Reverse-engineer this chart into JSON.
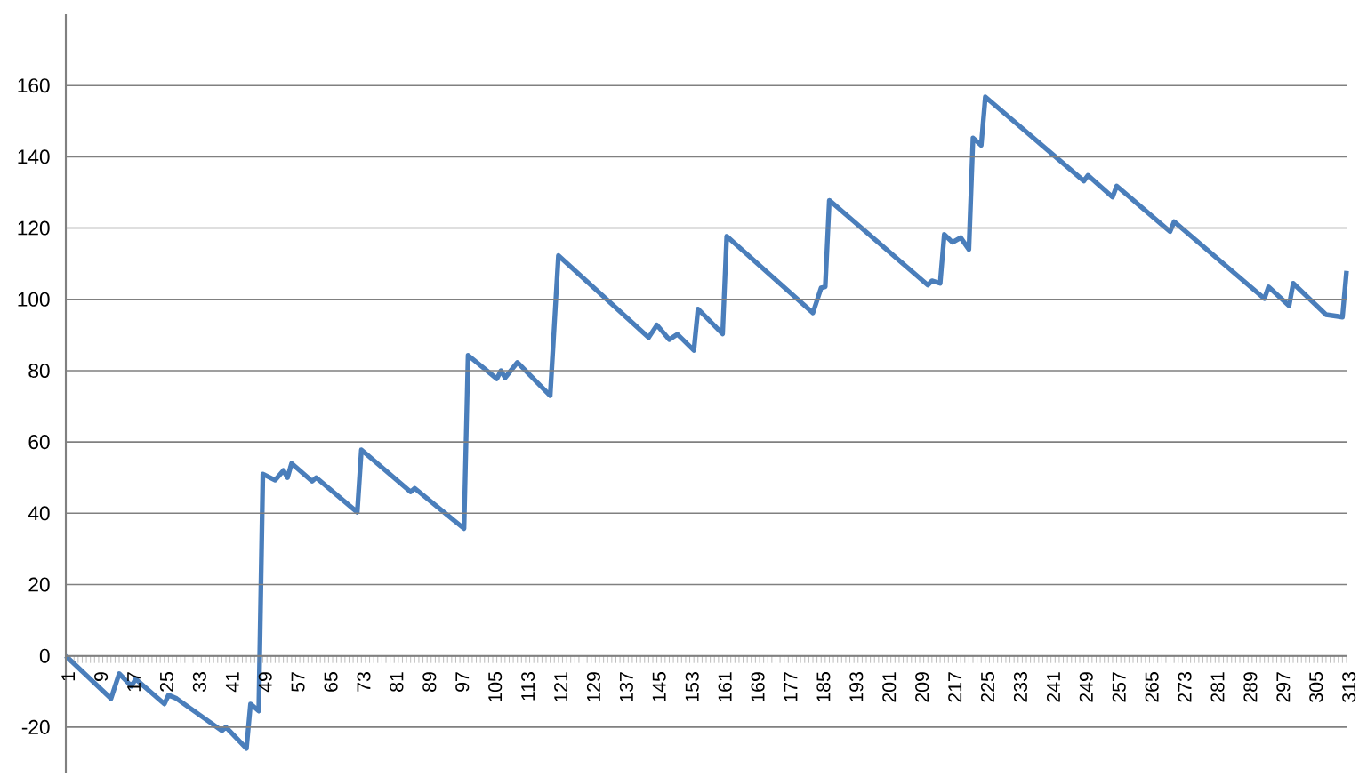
{
  "chart_data": {
    "type": "line",
    "color": "#4a7ebb",
    "grid": "y",
    "marker": "none",
    "line_style": "solid",
    "x": [
      1,
      12,
      14,
      17,
      18,
      25,
      26,
      28,
      39,
      40,
      45,
      46,
      48,
      49,
      52,
      54,
      55,
      56,
      61,
      62,
      72,
      73,
      85,
      86,
      98,
      99,
      106,
      107,
      108,
      111,
      119,
      121,
      143,
      145,
      148,
      150,
      154,
      155,
      161,
      162,
      183,
      185,
      186,
      187,
      211,
      212,
      214,
      215,
      217,
      219,
      221,
      222,
      224,
      225,
      249,
      250,
      256,
      257,
      270,
      271,
      293,
      294,
      299,
      300,
      308,
      311,
      312,
      313
    ],
    "values": [
      0,
      -12,
      -5,
      -8.5,
      -6.5,
      -13.5,
      -11,
      -12,
      -21,
      -20,
      -26,
      -13.5,
      -15.5,
      51,
      49.3,
      52,
      50,
      54,
      49,
      50,
      40.3,
      57.8,
      46,
      47,
      35.7,
      84.3,
      77.7,
      80,
      78,
      82.3,
      73,
      112.3,
      89.3,
      92.8,
      88.7,
      90.2,
      85.7,
      97.3,
      90.3,
      117.7,
      96.2,
      103.2,
      103.5,
      127.8,
      104,
      105.2,
      104.5,
      118.2,
      116,
      117.3,
      114,
      145.3,
      143.2,
      156.8,
      133.2,
      134.8,
      128.7,
      131.8,
      119,
      121.8,
      100.2,
      103.5,
      98.2,
      104.5,
      95.7,
      95.2,
      95,
      108
    ],
    "xlim": [
      1,
      313
    ],
    "xticks": [
      1,
      9,
      17,
      25,
      33,
      41,
      49,
      57,
      65,
      73,
      81,
      89,
      97,
      105,
      113,
      121,
      129,
      137,
      145,
      153,
      161,
      169,
      177,
      185,
      193,
      201,
      209,
      217,
      225,
      233,
      241,
      249,
      257,
      265,
      273,
      281,
      289,
      297,
      305,
      313
    ],
    "ylim": [
      -33,
      180
    ],
    "yticks": [
      -20,
      0,
      20,
      40,
      60,
      80,
      100,
      120,
      140,
      160
    ]
  }
}
